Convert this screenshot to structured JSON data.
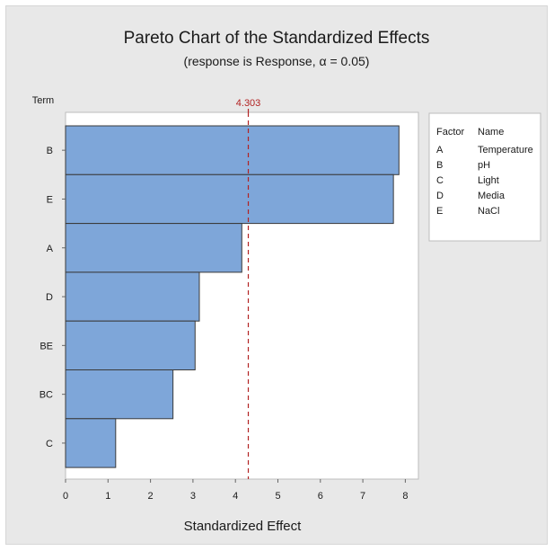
{
  "chart_data": {
    "type": "bar",
    "orientation": "horizontal",
    "title": "Pareto Chart of the Standardized Effects",
    "subtitle": "(response is Response, α = 0.05)",
    "xlabel": "Standardized Effect",
    "ylabel": "Term",
    "categories": [
      "B",
      "E",
      "A",
      "D",
      "BE",
      "BC",
      "C"
    ],
    "values": [
      7.85,
      7.72,
      4.15,
      3.15,
      3.05,
      2.53,
      1.18
    ],
    "xlim": [
      0,
      8.4
    ],
    "xticks": [
      0,
      1,
      2,
      3,
      4,
      5,
      6,
      7,
      8
    ],
    "reference_line": {
      "value": 4.303,
      "label": "4.303",
      "color": "#b22222"
    },
    "bar_color": "#7ea6d9",
    "legend": {
      "placement": "top-right",
      "headers": [
        "Factor",
        "Name"
      ],
      "rows": [
        [
          "A",
          "Temperature"
        ],
        [
          "B",
          "pH"
        ],
        [
          "C",
          "Light"
        ],
        [
          "D",
          "Media"
        ],
        [
          "E",
          "NaCl"
        ]
      ]
    },
    "grid": false
  }
}
